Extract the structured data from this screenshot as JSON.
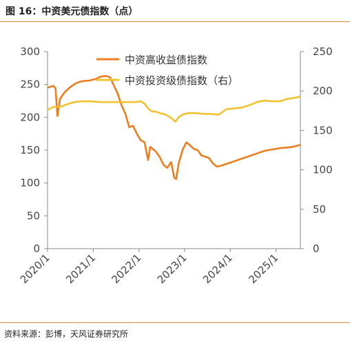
{
  "figure": {
    "title": "图 16：中资美元债指数（点）",
    "source": "资料来源：彭博，天风证券研究所"
  },
  "chart_data": {
    "type": "line",
    "x_axis": {
      "range": [
        "2020-01-01",
        "2025-07-15"
      ],
      "ticks": [
        "2020/1",
        "2021/1",
        "2022/1",
        "2023/1",
        "2024/1",
        "2025/1"
      ]
    },
    "y_left": {
      "range": [
        0,
        300
      ],
      "ticks": [
        0,
        50,
        100,
        150,
        200,
        250,
        300
      ]
    },
    "y_right": {
      "range": [
        0,
        250
      ],
      "ticks": [
        0,
        50,
        100,
        150,
        200,
        250
      ]
    },
    "grid": false,
    "legend_position": "top-center",
    "series": [
      {
        "name": "中资高收益债指数",
        "axis": "left",
        "color": "#ee7d1f",
        "points": [
          [
            "2020-01-01",
            245
          ],
          [
            "2020-02-15",
            248
          ],
          [
            "2020-03-05",
            244
          ],
          [
            "2020-03-20",
            202
          ],
          [
            "2020-04-10",
            228
          ],
          [
            "2020-05-15",
            238
          ],
          [
            "2020-07-01",
            246
          ],
          [
            "2020-08-15",
            252
          ],
          [
            "2020-10-01",
            255
          ],
          [
            "2020-12-01",
            256
          ],
          [
            "2021-01-15",
            258
          ],
          [
            "2021-03-01",
            262
          ],
          [
            "2021-04-15",
            263
          ],
          [
            "2021-05-15",
            261
          ],
          [
            "2021-06-15",
            248
          ],
          [
            "2021-07-15",
            236
          ],
          [
            "2021-08-15",
            218
          ],
          [
            "2021-09-15",
            205
          ],
          [
            "2021-10-15",
            185
          ],
          [
            "2021-11-15",
            187
          ],
          [
            "2021-12-15",
            175
          ],
          [
            "2022-01-15",
            165
          ],
          [
            "2022-02-15",
            162
          ],
          [
            "2022-03-15",
            135
          ],
          [
            "2022-04-01",
            155
          ],
          [
            "2022-05-15",
            148
          ],
          [
            "2022-06-15",
            140
          ],
          [
            "2022-07-15",
            128
          ],
          [
            "2022-08-15",
            123
          ],
          [
            "2022-09-15",
            132
          ],
          [
            "2022-10-10",
            108
          ],
          [
            "2022-10-25",
            106
          ],
          [
            "2022-11-15",
            130
          ],
          [
            "2022-12-15",
            150
          ],
          [
            "2023-01-15",
            162
          ],
          [
            "2023-02-15",
            157
          ],
          [
            "2023-03-15",
            152
          ],
          [
            "2023-04-15",
            150
          ],
          [
            "2023-05-15",
            142
          ],
          [
            "2023-06-15",
            140
          ],
          [
            "2023-07-15",
            138
          ],
          [
            "2023-08-15",
            130
          ],
          [
            "2023-09-15",
            125
          ],
          [
            "2023-10-15",
            126
          ],
          [
            "2023-11-15",
            128
          ],
          [
            "2023-12-15",
            130
          ],
          [
            "2024-02-01",
            133
          ],
          [
            "2024-04-01",
            137
          ],
          [
            "2024-06-01",
            141
          ],
          [
            "2024-08-01",
            145
          ],
          [
            "2024-10-01",
            149
          ],
          [
            "2024-12-01",
            151
          ],
          [
            "2025-02-01",
            153
          ],
          [
            "2025-04-01",
            154
          ],
          [
            "2025-05-15",
            155
          ],
          [
            "2025-07-15",
            158
          ]
        ]
      },
      {
        "name": "中资投资级债指数（右）",
        "axis": "right",
        "color": "#f2c12e",
        "points": [
          [
            "2020-01-01",
            176
          ],
          [
            "2020-02-15",
            180
          ],
          [
            "2020-03-20",
            180
          ],
          [
            "2020-04-15",
            180
          ],
          [
            "2020-06-01",
            183
          ],
          [
            "2020-08-01",
            186
          ],
          [
            "2020-10-01",
            187
          ],
          [
            "2020-12-01",
            187
          ],
          [
            "2021-03-01",
            186
          ],
          [
            "2021-06-01",
            186
          ],
          [
            "2021-09-01",
            186
          ],
          [
            "2021-12-01",
            186
          ],
          [
            "2022-01-15",
            187
          ],
          [
            "2022-02-15",
            184
          ],
          [
            "2022-03-15",
            178
          ],
          [
            "2022-04-15",
            174
          ],
          [
            "2022-05-15",
            174
          ],
          [
            "2022-06-15",
            172
          ],
          [
            "2022-07-15",
            171
          ],
          [
            "2022-08-15",
            169
          ],
          [
            "2022-09-15",
            166
          ],
          [
            "2022-10-20",
            161
          ],
          [
            "2022-11-15",
            167
          ],
          [
            "2022-12-15",
            170
          ],
          [
            "2023-02-01",
            172
          ],
          [
            "2023-04-01",
            172
          ],
          [
            "2023-06-01",
            171
          ],
          [
            "2023-08-01",
            171
          ],
          [
            "2023-10-01",
            170
          ],
          [
            "2023-12-01",
            177
          ],
          [
            "2024-02-01",
            178
          ],
          [
            "2024-04-01",
            179
          ],
          [
            "2024-06-01",
            182
          ],
          [
            "2024-08-01",
            186
          ],
          [
            "2024-10-01",
            188
          ],
          [
            "2024-12-01",
            187
          ],
          [
            "2025-02-01",
            187
          ],
          [
            "2025-04-01",
            190
          ],
          [
            "2025-05-15",
            191
          ],
          [
            "2025-07-15",
            193
          ]
        ]
      }
    ]
  }
}
